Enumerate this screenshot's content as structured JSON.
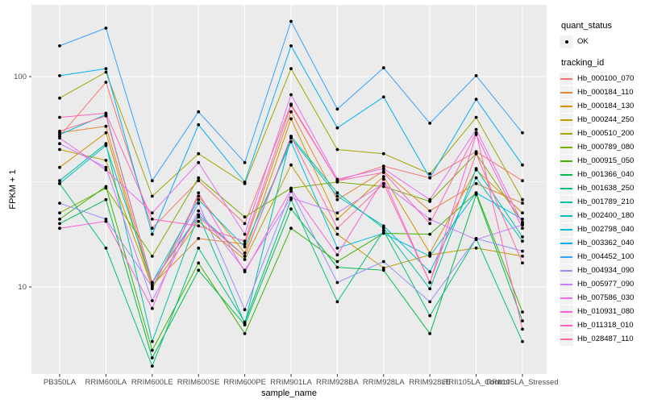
{
  "figure": {
    "background": "#FFFFFF",
    "panel_background": "#EBEBEB",
    "gridline_color": "#FFFFFF",
    "tick_mark_color": "#333333",
    "tick_label_color": "#4D4D4D",
    "point_color": "#000000"
  },
  "axes": {
    "y_label": "FPKM + 1",
    "x_label": "sample_name",
    "y_tick_labels": [
      "100",
      "10"
    ]
  },
  "legend": {
    "quant_status": {
      "title": "quant_status",
      "items": [
        {
          "label": "OK",
          "marker": "black-point"
        }
      ]
    },
    "tracking": {
      "title": "tracking_id"
    }
  },
  "chart_data": {
    "type": "line",
    "title": "",
    "xlabel": "sample_name",
    "ylabel": "FPKM + 1",
    "y_scale": "log10",
    "ylim": [
      3.8,
      220
    ],
    "y_major_gridlines": [
      10,
      100
    ],
    "y_minor_gridlines": [
      31.62
    ],
    "grid": true,
    "legend_position": "right",
    "marker": "black point (quant_status = OK) on every value",
    "categories": [
      "PB350LA",
      "RRIM600LA",
      "RRIM600LE",
      "RRIM600SE",
      "RRIM600PE",
      "RRIM901LA",
      "RRIM928BA",
      "RRIM928LA",
      "RRIM928LE",
      "RRII105LA_Control",
      "RRII105LA_Stressed"
    ],
    "series": [
      {
        "name": "Hb_000100_070",
        "color": "#F8766D",
        "values": [
          52,
          94,
          19,
          32,
          20,
          74,
          32,
          37.5,
          33,
          44,
          32
        ]
      },
      {
        "name": "Hb_000184_110",
        "color": "#EA8331",
        "values": [
          54,
          58,
          10.2,
          17,
          16,
          68,
          26,
          35.5,
          23,
          31,
          25
        ]
      },
      {
        "name": "Hb_000184_130",
        "color": "#D89000",
        "values": [
          37,
          54,
          9.8,
          27,
          14.5,
          63,
          21,
          33.5,
          14.5,
          36,
          22.5
        ]
      },
      {
        "name": "Hb_000244_250",
        "color": "#C09B00",
        "values": [
          45,
          40,
          10,
          20.5,
          13.5,
          38,
          17.8,
          12.3,
          14.2,
          15.3,
          14
        ]
      },
      {
        "name": "Hb_000510_200",
        "color": "#A3A500",
        "values": [
          79,
          105,
          27,
          43,
          31,
          109,
          45,
          43,
          34.5,
          64,
          26
        ]
      },
      {
        "name": "Hb_000789_080",
        "color": "#7CAE00",
        "values": [
          22.5,
          29.5,
          14,
          33,
          21.5,
          29.5,
          31.5,
          30,
          25.5,
          43,
          20.3
        ]
      },
      {
        "name": "Hb_000915_050",
        "color": "#39B600",
        "values": [
          21,
          30,
          5,
          13,
          6,
          19,
          13.2,
          18,
          17.8,
          28,
          7.6
        ]
      },
      {
        "name": "Hb_001366_040",
        "color": "#00BB4E",
        "values": [
          20,
          26,
          4.6,
          12,
          6.6,
          23.5,
          12.4,
          12,
          6,
          27.5,
          6.9
        ]
      },
      {
        "name": "Hb_001638_250",
        "color": "#00BF7D",
        "values": [
          31,
          15.3,
          4.2,
          15.3,
          6.8,
          26,
          8.5,
          18.5,
          7.3,
          17,
          5.5
        ]
      },
      {
        "name": "Hb_001789_210",
        "color": "#00C1A3",
        "values": [
          32,
          48,
          5.5,
          22,
          6.7,
          52,
          28,
          19,
          9.8,
          36.5,
          17.3
        ]
      },
      {
        "name": "Hb_002400_180",
        "color": "#00BFC4",
        "values": [
          31,
          47,
          10.5,
          22,
          14,
          51,
          27,
          19.5,
          11.8,
          33,
          16.5
        ]
      },
      {
        "name": "Hb_002798_040",
        "color": "#00BAE0",
        "values": [
          53,
          66,
          10.5,
          26,
          15.5,
          49,
          15.3,
          18,
          14,
          28,
          21
        ]
      },
      {
        "name": "Hb_003362_040",
        "color": "#00B0F6",
        "values": [
          101,
          109,
          17.8,
          59,
          31.5,
          140,
          57,
          80,
          33,
          78,
          38
        ]
      },
      {
        "name": "Hb_004452_100",
        "color": "#35A2FF",
        "values": [
          140,
          170,
          32,
          68,
          39,
          183,
          70,
          110,
          60,
          101,
          54
        ]
      },
      {
        "name": "Hb_004934_090",
        "color": "#9590FF",
        "values": [
          25,
          21,
          10,
          25,
          7.8,
          28.5,
          10.5,
          13.2,
          8.5,
          17,
          14.8
        ]
      },
      {
        "name": "Hb_005977_090",
        "color": "#C77CFF",
        "values": [
          48,
          37,
          8.6,
          23,
          12,
          26.5,
          22.5,
          31,
          21,
          16.8,
          19.7
        ]
      },
      {
        "name": "Hb_007586_030",
        "color": "#E76BF3",
        "values": [
          51,
          36,
          22.5,
          39,
          17.8,
          82,
          32.5,
          36.5,
          26,
          56,
          20
        ]
      },
      {
        "name": "Hb_010931_080",
        "color": "#FA62DB",
        "values": [
          19,
          20.5,
          7.9,
          28,
          11.8,
          29,
          14.2,
          32.5,
          10.5,
          53,
          19
        ]
      },
      {
        "name": "Hb_011318_010",
        "color": "#FF62BC",
        "values": [
          64,
          67,
          21,
          19.5,
          16.5,
          73,
          32,
          35,
          20,
          54,
          6.3
        ]
      },
      {
        "name": "Hb_028487_110",
        "color": "#FF6A98",
        "values": [
          55,
          65,
          10.5,
          21.5,
          14,
          52,
          19,
          31,
          10.5,
          43,
          13
        ]
      }
    ]
  }
}
